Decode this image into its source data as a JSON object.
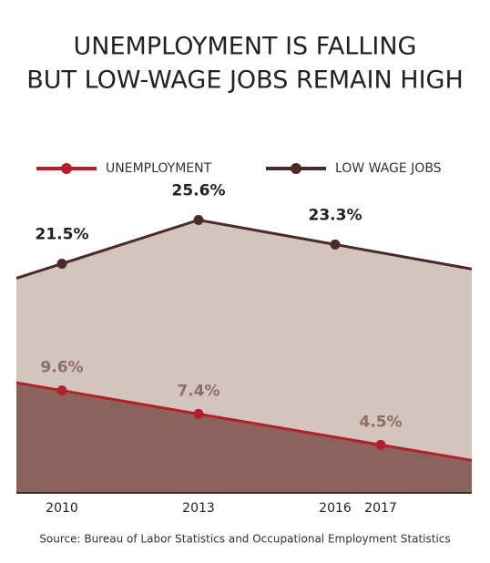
{
  "chart_data": {
    "type": "area",
    "title": [
      "UNEMPLOYMENT IS FALLING",
      "BUT LOW-WAGE JOBS REMAIN HIGH"
    ],
    "source": "Source: Bureau of Labor Statistics and Occupational Employment Statistics",
    "xlim": [
      2009,
      2019
    ],
    "xticks": [
      2010,
      2013,
      2016,
      2017
    ],
    "ylim": [
      0,
      30
    ],
    "legend": "top",
    "series": [
      {
        "name": "UNEMPLOYMENT",
        "color": "#b3202b",
        "fill": "#8a645c",
        "label_color": "#8c6f67",
        "x": [
          2010,
          2013,
          2017
        ],
        "values": [
          9.6,
          7.4,
          4.5
        ],
        "value_labels": [
          "9.6%",
          "7.4%",
          "4.5%"
        ]
      },
      {
        "name": "LOW WAGE JOBS",
        "color": "#4a2b27",
        "fill": "#d3c4be",
        "label_color": "#222222",
        "x": [
          2010,
          2013,
          2016
        ],
        "values": [
          21.5,
          25.6,
          23.3
        ],
        "value_labels": [
          "21.5%",
          "25.6%",
          "23.3%"
        ]
      }
    ]
  }
}
